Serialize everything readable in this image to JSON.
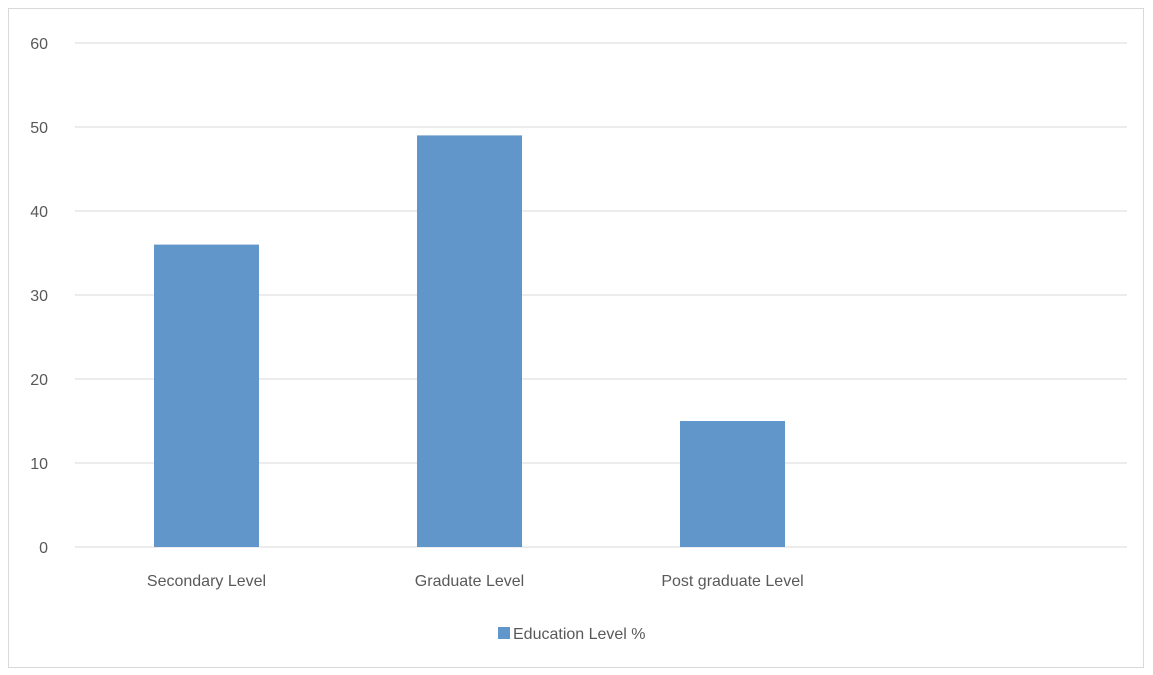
{
  "chart_data": {
    "type": "bar",
    "categories": [
      "Secondary Level",
      "Graduate Level",
      "Post graduate Level"
    ],
    "series": [
      {
        "name": "Education Level %",
        "values": [
          36,
          49,
          15
        ],
        "color": "#6096c9"
      }
    ],
    "yticks": [
      "0",
      "10",
      "20",
      "30",
      "40",
      "50",
      "60"
    ],
    "ylim": [
      0,
      60
    ],
    "grid": true,
    "legend_position": "bottom"
  }
}
